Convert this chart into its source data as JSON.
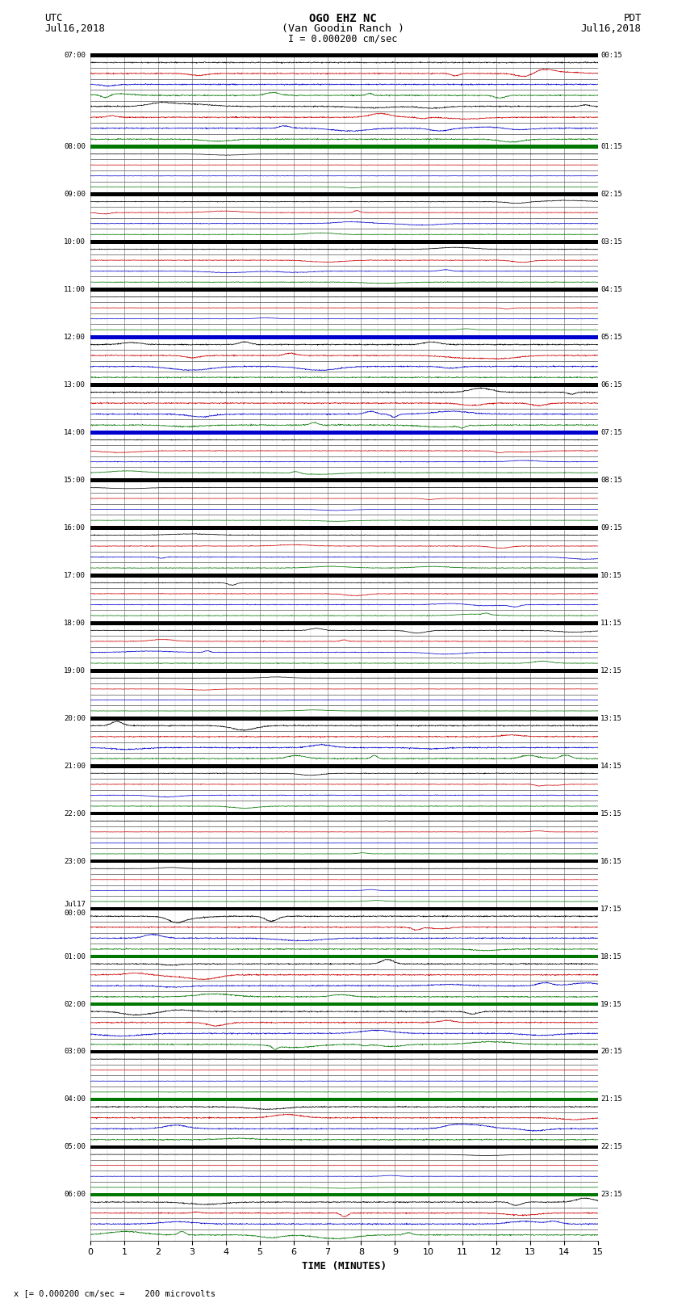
{
  "title_line1": "OGO EHZ NC",
  "title_line2": "(Van Goodin Ranch )",
  "title_line3": "I = 0.000200 cm/sec",
  "left_header_line1": "UTC",
  "left_header_line2": "Jul16,2018",
  "right_header_line1": "PDT",
  "right_header_line2": "Jul16,2018",
  "xlabel": "TIME (MINUTES)",
  "footer": "x [= 0.000200 cm/sec =    200 microvolts",
  "xlim": [
    0,
    15
  ],
  "xticks": [
    0,
    1,
    2,
    3,
    4,
    5,
    6,
    7,
    8,
    9,
    10,
    11,
    12,
    13,
    14,
    15
  ],
  "bg_color": "#ffffff",
  "colors": {
    "black": "#000000",
    "red": "#cc0000",
    "blue": "#0000cc",
    "green": "#007700"
  },
  "thick_line_color_black": "#000000",
  "thick_line_color_green": "#007700",
  "thick_line_color_blue": "#0000cc",
  "seed": 12345,
  "row_groups": [
    {
      "label_left": "07:00",
      "label_right": "00:15",
      "thick_color": "black",
      "rows": [
        "black",
        "red",
        "blue",
        "green",
        "black",
        "red",
        "blue",
        "green"
      ]
    },
    {
      "label_left": "08:00",
      "label_right": "01:15",
      "thick_color": "green",
      "rows": [
        "black",
        "red",
        "blue",
        "green"
      ]
    },
    {
      "label_left": "09:00",
      "label_right": "02:15",
      "thick_color": "black",
      "rows": [
        "black",
        "red",
        "blue",
        "green"
      ]
    },
    {
      "label_left": "10:00",
      "label_right": "03:15",
      "thick_color": "black",
      "rows": [
        "black",
        "red",
        "blue",
        "green"
      ]
    },
    {
      "label_left": "11:00",
      "label_right": "04:15",
      "thick_color": "black",
      "rows": [
        "black",
        "red",
        "blue",
        "green"
      ]
    },
    {
      "label_left": "12:00",
      "label_right": "05:15",
      "thick_color": "blue",
      "rows": [
        "black",
        "red",
        "blue",
        "green"
      ]
    },
    {
      "label_left": "13:00",
      "label_right": "06:15",
      "thick_color": "black",
      "rows": [
        "black",
        "red",
        "blue",
        "green"
      ]
    },
    {
      "label_left": "14:00",
      "label_right": "07:15",
      "thick_color": "blue",
      "rows": [
        "black",
        "red",
        "blue",
        "green"
      ]
    },
    {
      "label_left": "15:00",
      "label_right": "08:15",
      "thick_color": "black",
      "rows": [
        "black",
        "red",
        "blue",
        "green"
      ]
    },
    {
      "label_left": "16:00",
      "label_right": "09:15",
      "thick_color": "black",
      "rows": [
        "black",
        "red",
        "blue",
        "green"
      ]
    },
    {
      "label_left": "17:00",
      "label_right": "10:15",
      "thick_color": "black",
      "rows": [
        "black",
        "red",
        "blue",
        "green"
      ]
    },
    {
      "label_left": "18:00",
      "label_right": "11:15",
      "thick_color": "black",
      "rows": [
        "black",
        "red",
        "blue",
        "green"
      ]
    },
    {
      "label_left": "19:00",
      "label_right": "12:15",
      "thick_color": "black",
      "rows": [
        "black",
        "red",
        "blue",
        "green"
      ]
    },
    {
      "label_left": "20:00",
      "label_right": "13:15",
      "thick_color": "black",
      "rows": [
        "black",
        "red",
        "blue",
        "green"
      ]
    },
    {
      "label_left": "21:00",
      "label_right": "14:15",
      "thick_color": "black",
      "rows": [
        "black",
        "red",
        "blue",
        "green"
      ]
    },
    {
      "label_left": "22:00",
      "label_right": "15:15",
      "thick_color": "black",
      "rows": [
        "black",
        "red",
        "blue",
        "green"
      ]
    },
    {
      "label_left": "23:00",
      "label_right": "16:15",
      "thick_color": "black",
      "rows": [
        "black",
        "red",
        "blue",
        "green"
      ]
    },
    {
      "label_left": "Jul17\n00:00",
      "label_right": "17:15",
      "thick_color": "black",
      "rows": [
        "black",
        "red",
        "blue",
        "green"
      ]
    },
    {
      "label_left": "01:00",
      "label_right": "18:15",
      "thick_color": "green",
      "rows": [
        "black",
        "red",
        "blue",
        "green"
      ]
    },
    {
      "label_left": "02:00",
      "label_right": "19:15",
      "thick_color": "green",
      "rows": [
        "black",
        "red",
        "blue",
        "green"
      ]
    },
    {
      "label_left": "03:00",
      "label_right": "20:15",
      "thick_color": "black",
      "rows": [
        "black",
        "red",
        "blue",
        "green"
      ]
    },
    {
      "label_left": "04:00",
      "label_right": "21:15",
      "thick_color": "green",
      "rows": [
        "black",
        "red",
        "blue",
        "green"
      ]
    },
    {
      "label_left": "05:00",
      "label_right": "22:15",
      "thick_color": "black",
      "rows": [
        "black",
        "red",
        "blue",
        "green"
      ]
    },
    {
      "label_left": "06:00",
      "label_right": "23:15",
      "thick_color": "green",
      "rows": [
        "black",
        "red",
        "blue",
        "green"
      ]
    }
  ]
}
